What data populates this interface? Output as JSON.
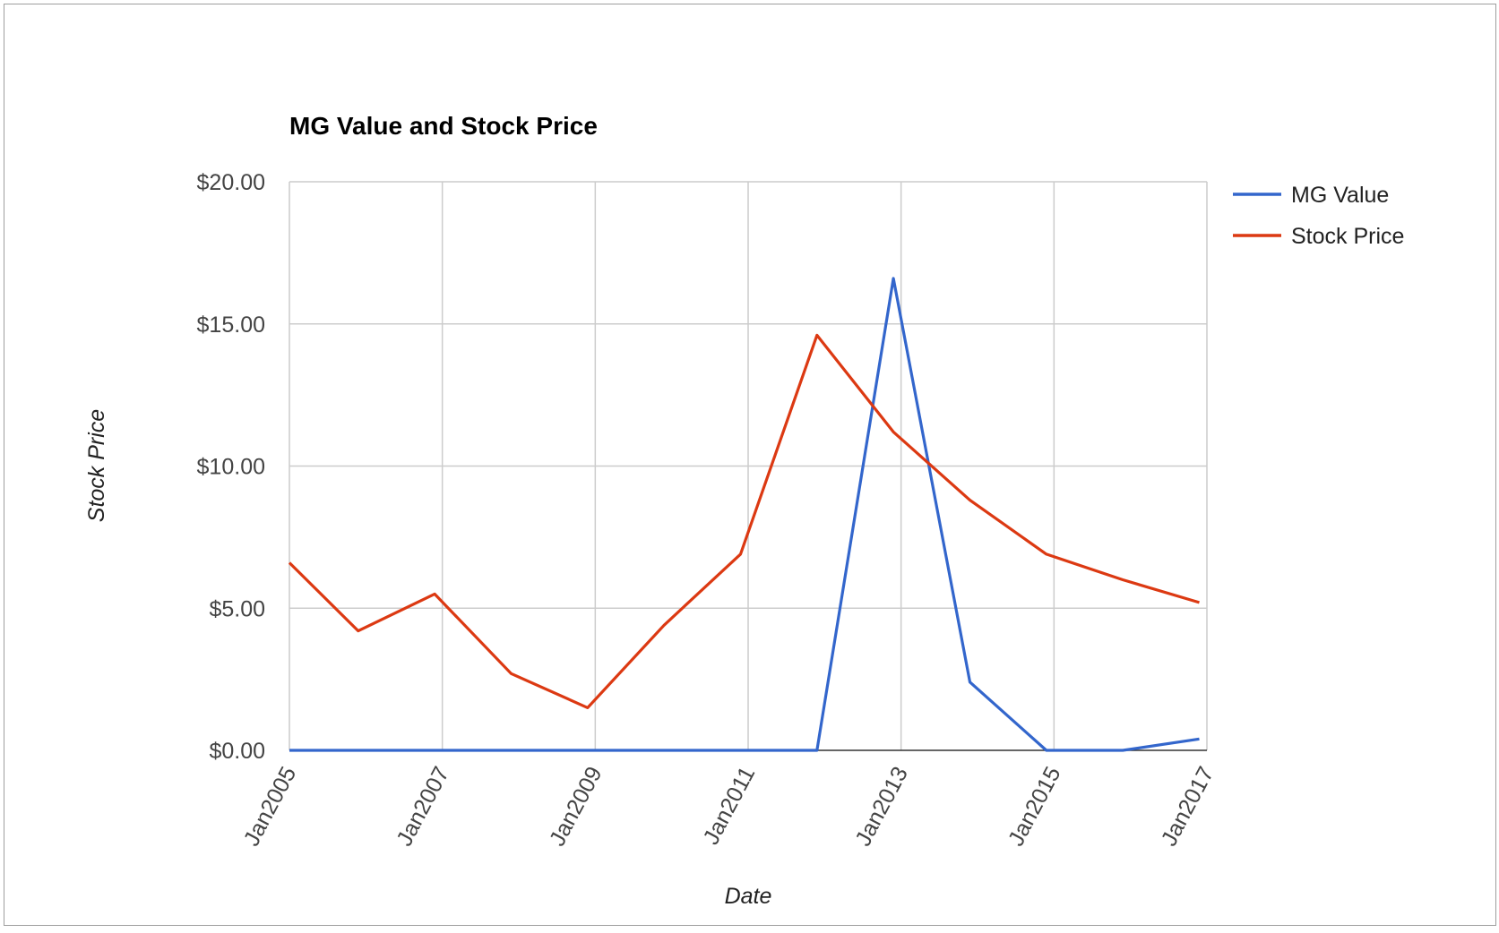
{
  "chart_data": {
    "type": "line",
    "title": "MG Value and Stock Price",
    "xlabel": "Date",
    "ylabel": "Stock Price",
    "x": [
      "2005",
      "2006",
      "2007",
      "2008",
      "2009",
      "2010",
      "2011",
      "2012",
      "2013",
      "2014",
      "2015",
      "2016",
      "2017"
    ],
    "x_tick_labels": [
      "Jan2005",
      "Jan2007",
      "Jan2009",
      "Jan2011",
      "Jan2013",
      "Jan2015",
      "Jan2017"
    ],
    "x_tick_years": [
      2005,
      2007,
      2009,
      2011,
      2013,
      2015,
      2017
    ],
    "y_tick_labels": [
      "$0.00",
      "$5.00",
      "$10.00",
      "$15.00",
      "$20.00"
    ],
    "y_ticks": [
      0,
      5,
      10,
      15,
      20
    ],
    "ylim": [
      0,
      20
    ],
    "grid": true,
    "legend_position": "right",
    "series": [
      {
        "name": "MG Value",
        "color": "#3366cc",
        "points": [
          [
            2005.0,
            0
          ],
          [
            2006.0,
            0
          ],
          [
            2007.0,
            0
          ],
          [
            2008.0,
            0
          ],
          [
            2009.0,
            0
          ],
          [
            2010.0,
            0
          ],
          [
            2011.0,
            0
          ],
          [
            2011.9,
            0
          ],
          [
            2012.9,
            16.6
          ],
          [
            2013.9,
            2.4
          ],
          [
            2014.9,
            0
          ],
          [
            2015.9,
            0
          ],
          [
            2016.9,
            0.4
          ]
        ]
      },
      {
        "name": "Stock Price",
        "color": "#dc3912",
        "points": [
          [
            2005.0,
            6.6
          ],
          [
            2005.9,
            4.2
          ],
          [
            2006.9,
            5.5
          ],
          [
            2007.9,
            2.7
          ],
          [
            2008.9,
            1.5
          ],
          [
            2009.9,
            4.4
          ],
          [
            2010.9,
            6.9
          ],
          [
            2011.9,
            14.6
          ],
          [
            2012.9,
            11.2
          ],
          [
            2013.9,
            8.8
          ],
          [
            2014.9,
            6.9
          ],
          [
            2015.9,
            6.0
          ],
          [
            2016.9,
            5.2
          ]
        ]
      }
    ]
  }
}
